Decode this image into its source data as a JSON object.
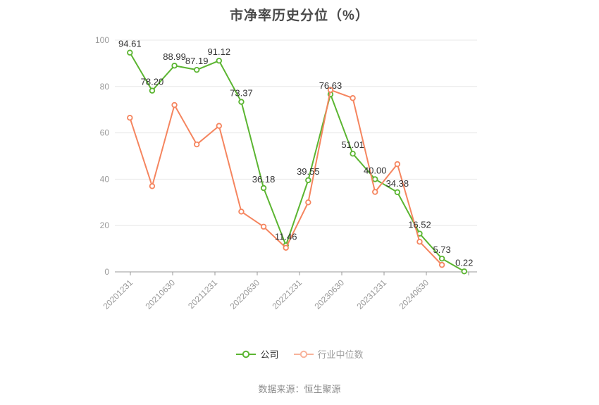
{
  "chart_data": {
    "type": "line",
    "title": "市净率历史分位（%）",
    "footer": "数据来源：恒生聚源",
    "x_tick_labels": [
      "20201231",
      "20210630",
      "20211231",
      "20220630",
      "20221231",
      "20230630",
      "20231231",
      "20240630"
    ],
    "y_ticks": [
      0,
      20,
      40,
      60,
      80,
      100
    ],
    "ylim": [
      0,
      100
    ],
    "grid": true,
    "legend_position": "bottom",
    "series": [
      {
        "name": "公司",
        "color": "#5bb531",
        "values": [
          94.61,
          78.2,
          88.99,
          87.19,
          91.12,
          73.37,
          36.18,
          11.46,
          39.55,
          76.63,
          51.01,
          40.0,
          34.38,
          16.52,
          5.73,
          0.22
        ],
        "point_labels": [
          "94.61",
          "78.20",
          "88.99",
          "87.19",
          "91.12",
          "73.37",
          "36.18",
          "11.46",
          "39.55",
          "76.63",
          "51.01",
          "40.00",
          "34.38",
          "16.52",
          "5.73",
          "0.22"
        ]
      },
      {
        "name": "行业中位数",
        "color": "#f5855f",
        "values": [
          66.5,
          37.0,
          72.0,
          55.0,
          63.0,
          26.0,
          19.5,
          10.4,
          30.0,
          78.5,
          75.0,
          34.5,
          46.5,
          13.0,
          3.0
        ],
        "point_labels": null
      }
    ],
    "legend": [
      {
        "label": "公司",
        "color": "#5bb531"
      },
      {
        "label": "行业中位数",
        "color": "#f5855f"
      }
    ],
    "colors": {
      "value_label": "#333333",
      "axis_text": "#999999",
      "grid_line": "#e8e8e8",
      "axis_line": "#999999",
      "title_text": "#4a4a4a",
      "footer_text": "#8a8a8a"
    }
  }
}
